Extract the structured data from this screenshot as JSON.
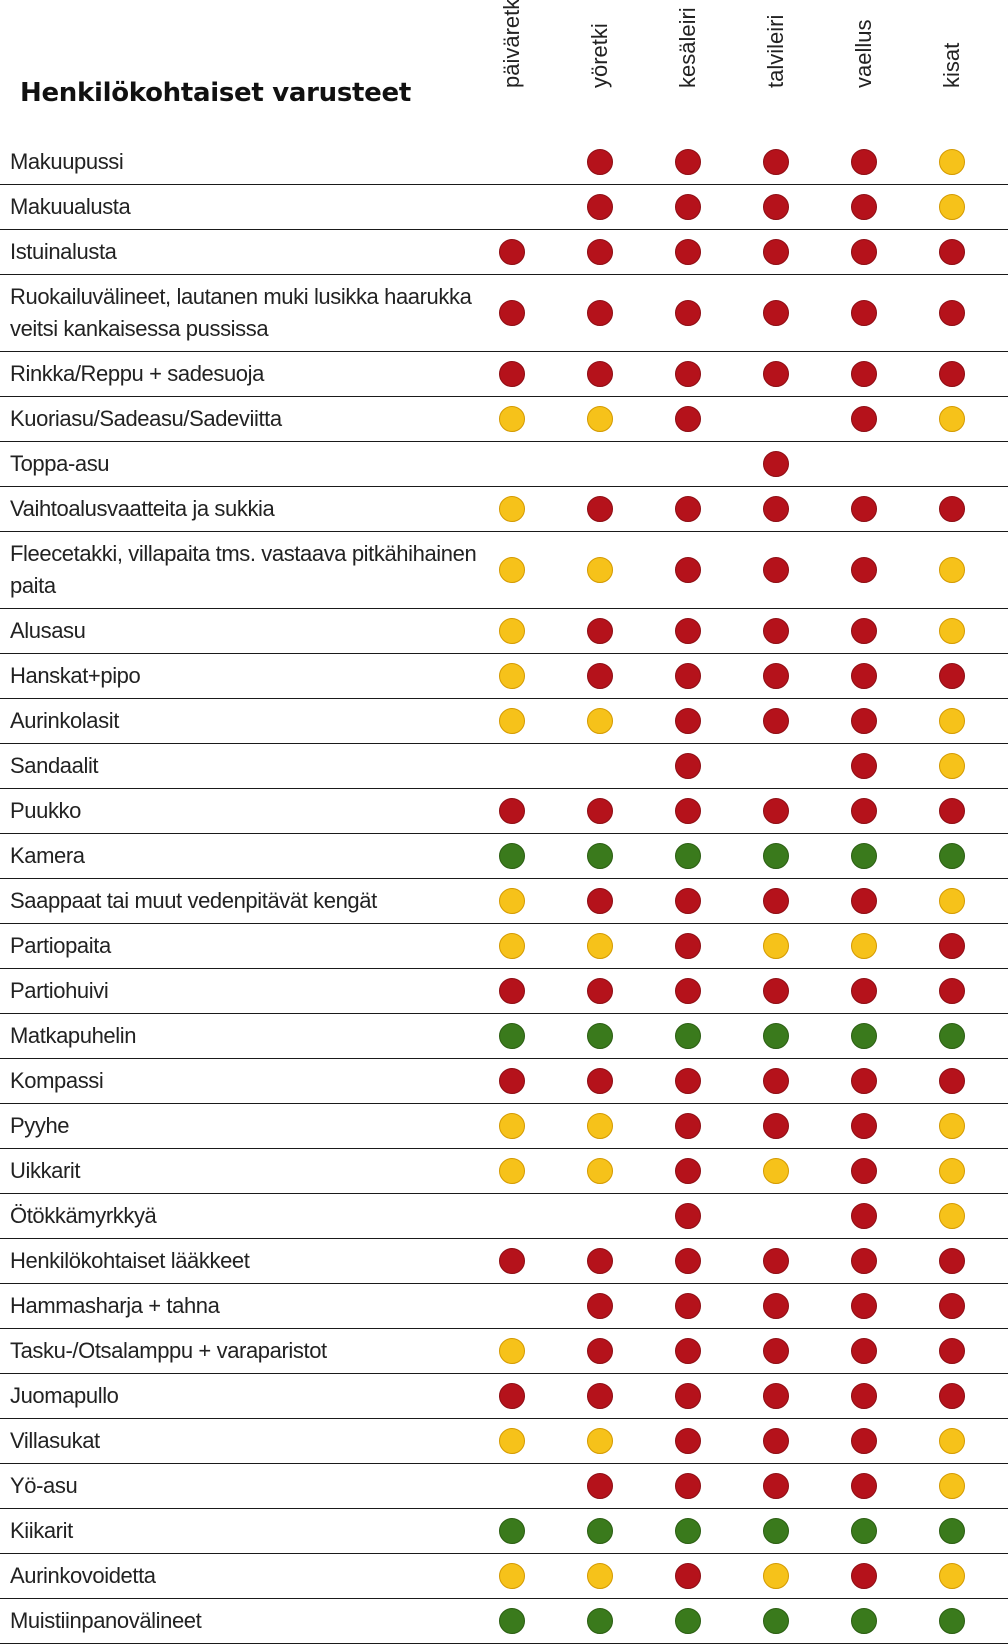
{
  "title": "Henkilökohtaiset varusteet",
  "columns": [
    "päiväretki",
    "yöretki",
    "kesäleiri",
    "talvileiri",
    "vaellus",
    "kisat"
  ],
  "colors": {
    "r": "#b5121b",
    "y": "#f6c21a",
    "g": "#3a7a1c"
  },
  "rows": [
    {
      "label": "Makuupussi",
      "marks": [
        "",
        "r",
        "r",
        "r",
        "r",
        "y"
      ]
    },
    {
      "label": "Makuualusta",
      "marks": [
        "",
        "r",
        "r",
        "r",
        "r",
        "y"
      ]
    },
    {
      "label": "Istuinalusta",
      "marks": [
        "r",
        "r",
        "r",
        "r",
        "r",
        "r"
      ]
    },
    {
      "label": "Ruokailuvälineet, lautanen muki lusikka haarukka veitsi kankaisessa pussissa",
      "marks": [
        "r",
        "r",
        "r",
        "r",
        "r",
        "r"
      ]
    },
    {
      "label": "Rinkka/Reppu + sadesuoja",
      "marks": [
        "r",
        "r",
        "r",
        "r",
        "r",
        "r"
      ]
    },
    {
      "label": "Kuoriasu/Sadeasu/Sadeviitta",
      "marks": [
        "y",
        "y",
        "r",
        "",
        "r",
        "y"
      ]
    },
    {
      "label": "Toppa-asu",
      "marks": [
        "",
        "",
        "",
        "r",
        "",
        ""
      ]
    },
    {
      "label": "Vaihtoalusvaatteita ja sukkia",
      "marks": [
        "y",
        "r",
        "r",
        "r",
        "r",
        "r"
      ]
    },
    {
      "label": "Fleecetakki, villapaita tms. vastaava pitkähihainen paita",
      "marks": [
        "y",
        "y",
        "r",
        "r",
        "r",
        "y"
      ]
    },
    {
      "label": "Alusasu",
      "marks": [
        "y",
        "r",
        "r",
        "r",
        "r",
        "y"
      ]
    },
    {
      "label": "Hanskat+pipo",
      "marks": [
        "y",
        "r",
        "r",
        "r",
        "r",
        "r"
      ]
    },
    {
      "label": "Aurinkolasit",
      "marks": [
        "y",
        "y",
        "r",
        "r",
        "r",
        "y"
      ]
    },
    {
      "label": "Sandaalit",
      "marks": [
        "",
        "",
        "r",
        "",
        "r",
        "y"
      ]
    },
    {
      "label": "Puukko",
      "marks": [
        "r",
        "r",
        "r",
        "r",
        "r",
        "r"
      ]
    },
    {
      "label": "Kamera",
      "marks": [
        "g",
        "g",
        "g",
        "g",
        "g",
        "g"
      ]
    },
    {
      "label": "Saappaat tai muut vedenpitävät kengät",
      "marks": [
        "y",
        "r",
        "r",
        "r",
        "r",
        "y"
      ]
    },
    {
      "label": "Partiopaita",
      "marks": [
        "y",
        "y",
        "r",
        "y",
        "y",
        "r"
      ]
    },
    {
      "label": "Partiohuivi",
      "marks": [
        "r",
        "r",
        "r",
        "r",
        "r",
        "r"
      ]
    },
    {
      "label": "Matkapuhelin",
      "marks": [
        "g",
        "g",
        "g",
        "g",
        "g",
        "g"
      ]
    },
    {
      "label": "Kompassi",
      "marks": [
        "r",
        "r",
        "r",
        "r",
        "r",
        "r"
      ]
    },
    {
      "label": "Pyyhe",
      "marks": [
        "y",
        "y",
        "r",
        "r",
        "r",
        "y"
      ]
    },
    {
      "label": "Uikkarit",
      "marks": [
        "y",
        "y",
        "r",
        "y",
        "r",
        "y"
      ]
    },
    {
      "label": "Ötökkämyrkkyä",
      "marks": [
        "",
        "",
        "r",
        "",
        "r",
        "y"
      ]
    },
    {
      "label": "Henkilökohtaiset lääkkeet",
      "marks": [
        "r",
        "r",
        "r",
        "r",
        "r",
        "r"
      ]
    },
    {
      "label": "Hammasharja + tahna",
      "marks": [
        "",
        "r",
        "r",
        "r",
        "r",
        "r"
      ]
    },
    {
      "label": "Tasku-/Otsalamppu + varaparistot",
      "marks": [
        "y",
        "r",
        "r",
        "r",
        "r",
        "r"
      ]
    },
    {
      "label": "Juomapullo",
      "marks": [
        "r",
        "r",
        "r",
        "r",
        "r",
        "r"
      ]
    },
    {
      "label": "Villasukat",
      "marks": [
        "y",
        "y",
        "r",
        "r",
        "r",
        "y"
      ]
    },
    {
      "label": "Yö-asu",
      "marks": [
        "",
        "r",
        "r",
        "r",
        "r",
        "y"
      ]
    },
    {
      "label": "Kiikarit",
      "marks": [
        "g",
        "g",
        "g",
        "g",
        "g",
        "g"
      ]
    },
    {
      "label": "Aurinkovoidetta",
      "marks": [
        "y",
        "y",
        "r",
        "y",
        "r",
        "y"
      ]
    },
    {
      "label": "Muistiinpanovälineet",
      "marks": [
        "g",
        "g",
        "g",
        "g",
        "g",
        "g"
      ]
    }
  ]
}
